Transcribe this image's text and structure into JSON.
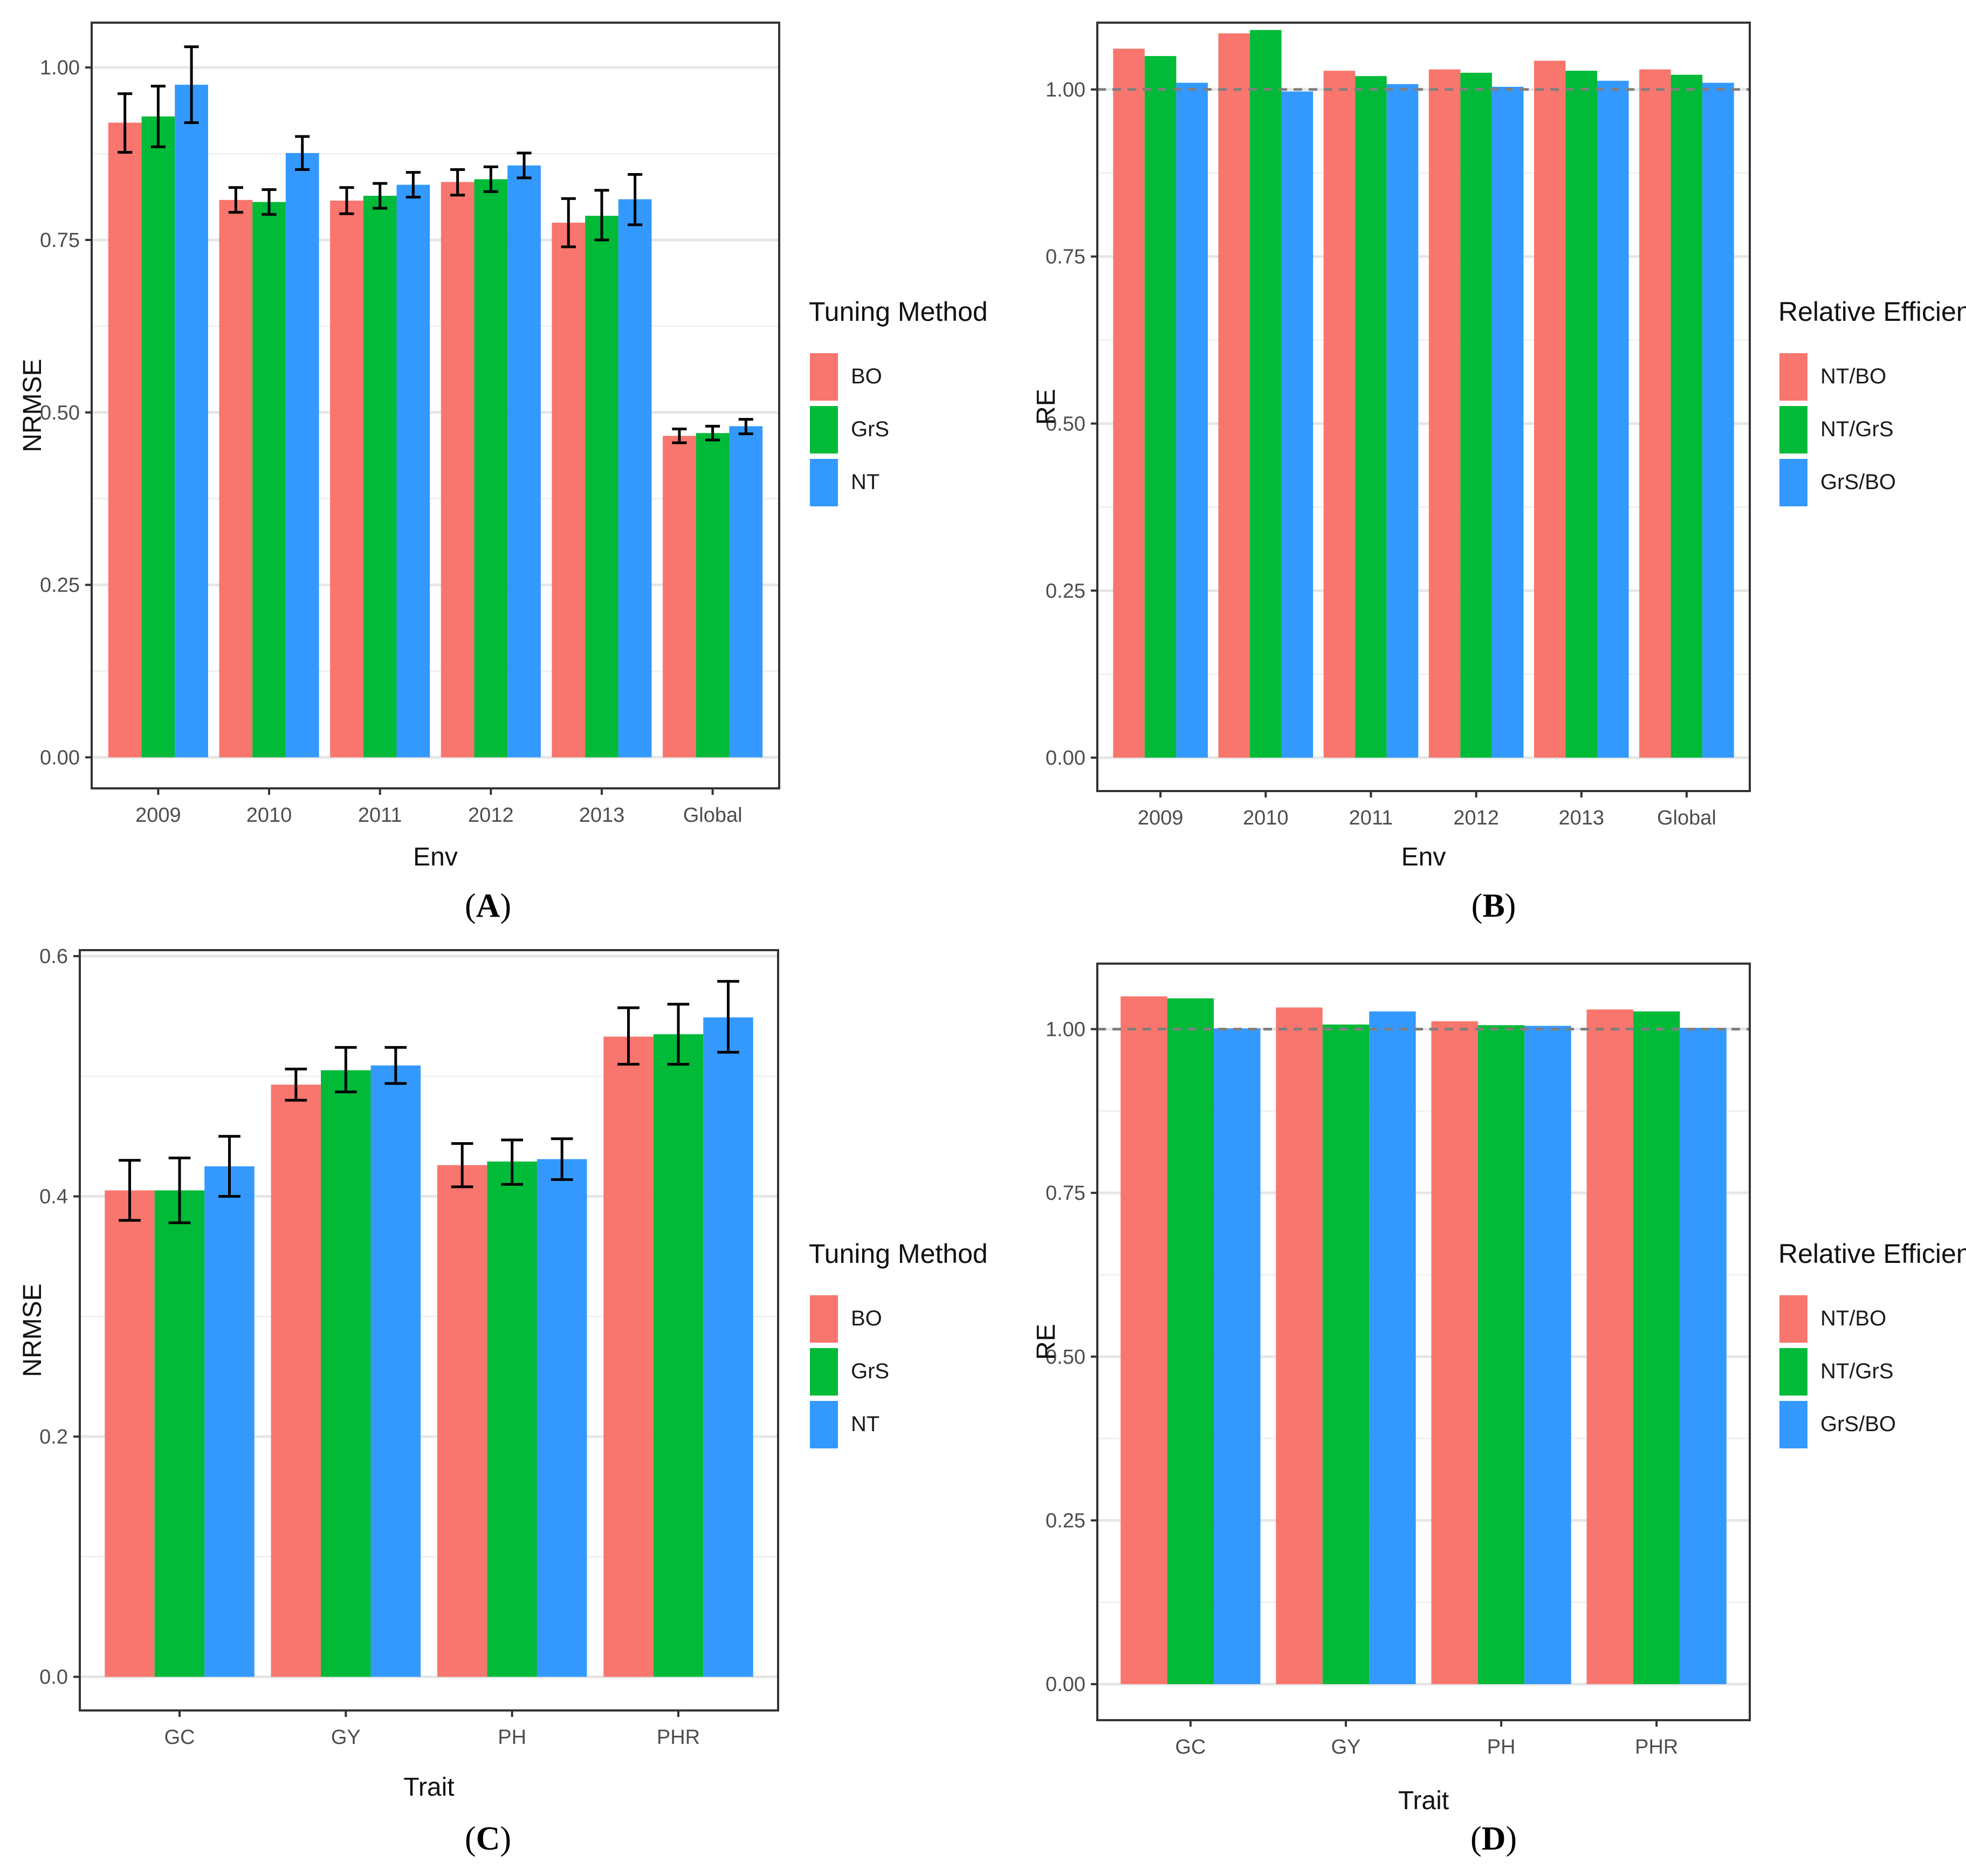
{
  "figure": {
    "panels": [
      "A",
      "B",
      "C",
      "D"
    ]
  },
  "chart_data": [
    {
      "id": "A",
      "caption_letter": "A",
      "type": "bar",
      "xlabel": "Env",
      "ylabel": "NRMSE",
      "ylim": [
        -0.045,
        1.065
      ],
      "yticks": [
        0.0,
        0.25,
        0.5,
        0.75,
        1.0
      ],
      "ytick_labels": [
        "0.00",
        "0.25",
        "0.50",
        "0.75",
        "1.00"
      ],
      "categories": [
        "2009",
        "2010",
        "2011",
        "2012",
        "2013",
        "Global"
      ],
      "legend_title": "Tuning Method",
      "series": [
        {
          "name": "BO",
          "color": "#F8766D",
          "values": [
            0.92,
            0.808,
            0.807,
            0.834,
            0.775,
            0.466
          ],
          "err_low": [
            0.877,
            0.79,
            0.788,
            0.815,
            0.74,
            0.456
          ],
          "err_high": [
            0.962,
            0.826,
            0.826,
            0.852,
            0.81,
            0.476
          ]
        },
        {
          "name": "GrS",
          "color": "#00BA38",
          "values": [
            0.929,
            0.805,
            0.814,
            0.838,
            0.785,
            0.47
          ],
          "err_low": [
            0.885,
            0.787,
            0.796,
            0.82,
            0.75,
            0.46
          ],
          "err_high": [
            0.973,
            0.823,
            0.832,
            0.856,
            0.822,
            0.48
          ]
        },
        {
          "name": "NT",
          "color": "#3399FF",
          "values": [
            0.975,
            0.876,
            0.83,
            0.858,
            0.809,
            0.48
          ],
          "err_low": [
            0.92,
            0.852,
            0.812,
            0.84,
            0.772,
            0.469
          ],
          "err_high": [
            1.03,
            0.9,
            0.848,
            0.876,
            0.845,
            0.49
          ]
        }
      ],
      "reference_line": null
    },
    {
      "id": "B",
      "caption_letter": "B",
      "type": "bar",
      "xlabel": "Env",
      "ylabel": "RE",
      "ylim": [
        -0.05,
        1.1
      ],
      "yticks": [
        0.0,
        0.25,
        0.5,
        0.75,
        1.0
      ],
      "ytick_labels": [
        "0.00",
        "0.25",
        "0.50",
        "0.75",
        "1.00"
      ],
      "categories": [
        "2009",
        "2010",
        "2011",
        "2012",
        "2013",
        "Global"
      ],
      "legend_title": "Relative Efficiency",
      "series": [
        {
          "name": "NT/BO",
          "color": "#F8766D",
          "values": [
            1.061,
            1.084,
            1.028,
            1.03,
            1.043,
            1.03
          ]
        },
        {
          "name": "NT/GrS",
          "color": "#00BA38",
          "values": [
            1.05,
            1.089,
            1.02,
            1.025,
            1.028,
            1.022
          ]
        },
        {
          "name": "GrS/BO",
          "color": "#3399FF",
          "values": [
            1.01,
            0.997,
            1.008,
            1.004,
            1.013,
            1.01
          ]
        }
      ],
      "reference_line": 1.0
    },
    {
      "id": "C",
      "caption_letter": "C",
      "type": "bar",
      "xlabel": "Trait",
      "ylabel": "NRMSE",
      "ylim": [
        -0.028,
        0.605
      ],
      "yticks": [
        0.0,
        0.2,
        0.4,
        0.6
      ],
      "ytick_labels": [
        "0.0",
        "0.2",
        "0.4",
        "0.6"
      ],
      "categories": [
        "GC",
        "GY",
        "PH",
        "PHR"
      ],
      "legend_title": "Tuning Method",
      "series": [
        {
          "name": "BO",
          "color": "#F8766D",
          "values": [
            0.405,
            0.493,
            0.426,
            0.533
          ],
          "err_low": [
            0.38,
            0.48,
            0.408,
            0.51
          ],
          "err_high": [
            0.43,
            0.506,
            0.444,
            0.557
          ]
        },
        {
          "name": "GrS",
          "color": "#00BA38",
          "values": [
            0.405,
            0.505,
            0.429,
            0.535
          ],
          "err_low": [
            0.378,
            0.487,
            0.41,
            0.51
          ],
          "err_high": [
            0.432,
            0.524,
            0.447,
            0.56
          ]
        },
        {
          "name": "NT",
          "color": "#3399FF",
          "values": [
            0.425,
            0.509,
            0.431,
            0.549
          ],
          "err_low": [
            0.4,
            0.494,
            0.414,
            0.52
          ],
          "err_high": [
            0.45,
            0.524,
            0.448,
            0.579
          ]
        }
      ],
      "reference_line": null
    },
    {
      "id": "D",
      "caption_letter": "D",
      "type": "bar",
      "xlabel": "Trait",
      "ylabel": "RE",
      "ylim": [
        -0.055,
        1.1
      ],
      "yticks": [
        0.0,
        0.25,
        0.5,
        0.75,
        1.0
      ],
      "ytick_labels": [
        "0.00",
        "0.25",
        "0.50",
        "0.75",
        "1.00"
      ],
      "categories": [
        "GC",
        "GY",
        "PH",
        "PHR"
      ],
      "legend_title": "Relative Efficiency",
      "series": [
        {
          "name": "NT/BO",
          "color": "#F8766D",
          "values": [
            1.05,
            1.033,
            1.012,
            1.03
          ]
        },
        {
          "name": "NT/GrS",
          "color": "#00BA38",
          "values": [
            1.047,
            1.007,
            1.006,
            1.027
          ]
        },
        {
          "name": "GrS/BO",
          "color": "#3399FF",
          "values": [
            1.001,
            1.027,
            1.005,
            1.002
          ]
        }
      ],
      "reference_line": 1.0
    }
  ]
}
